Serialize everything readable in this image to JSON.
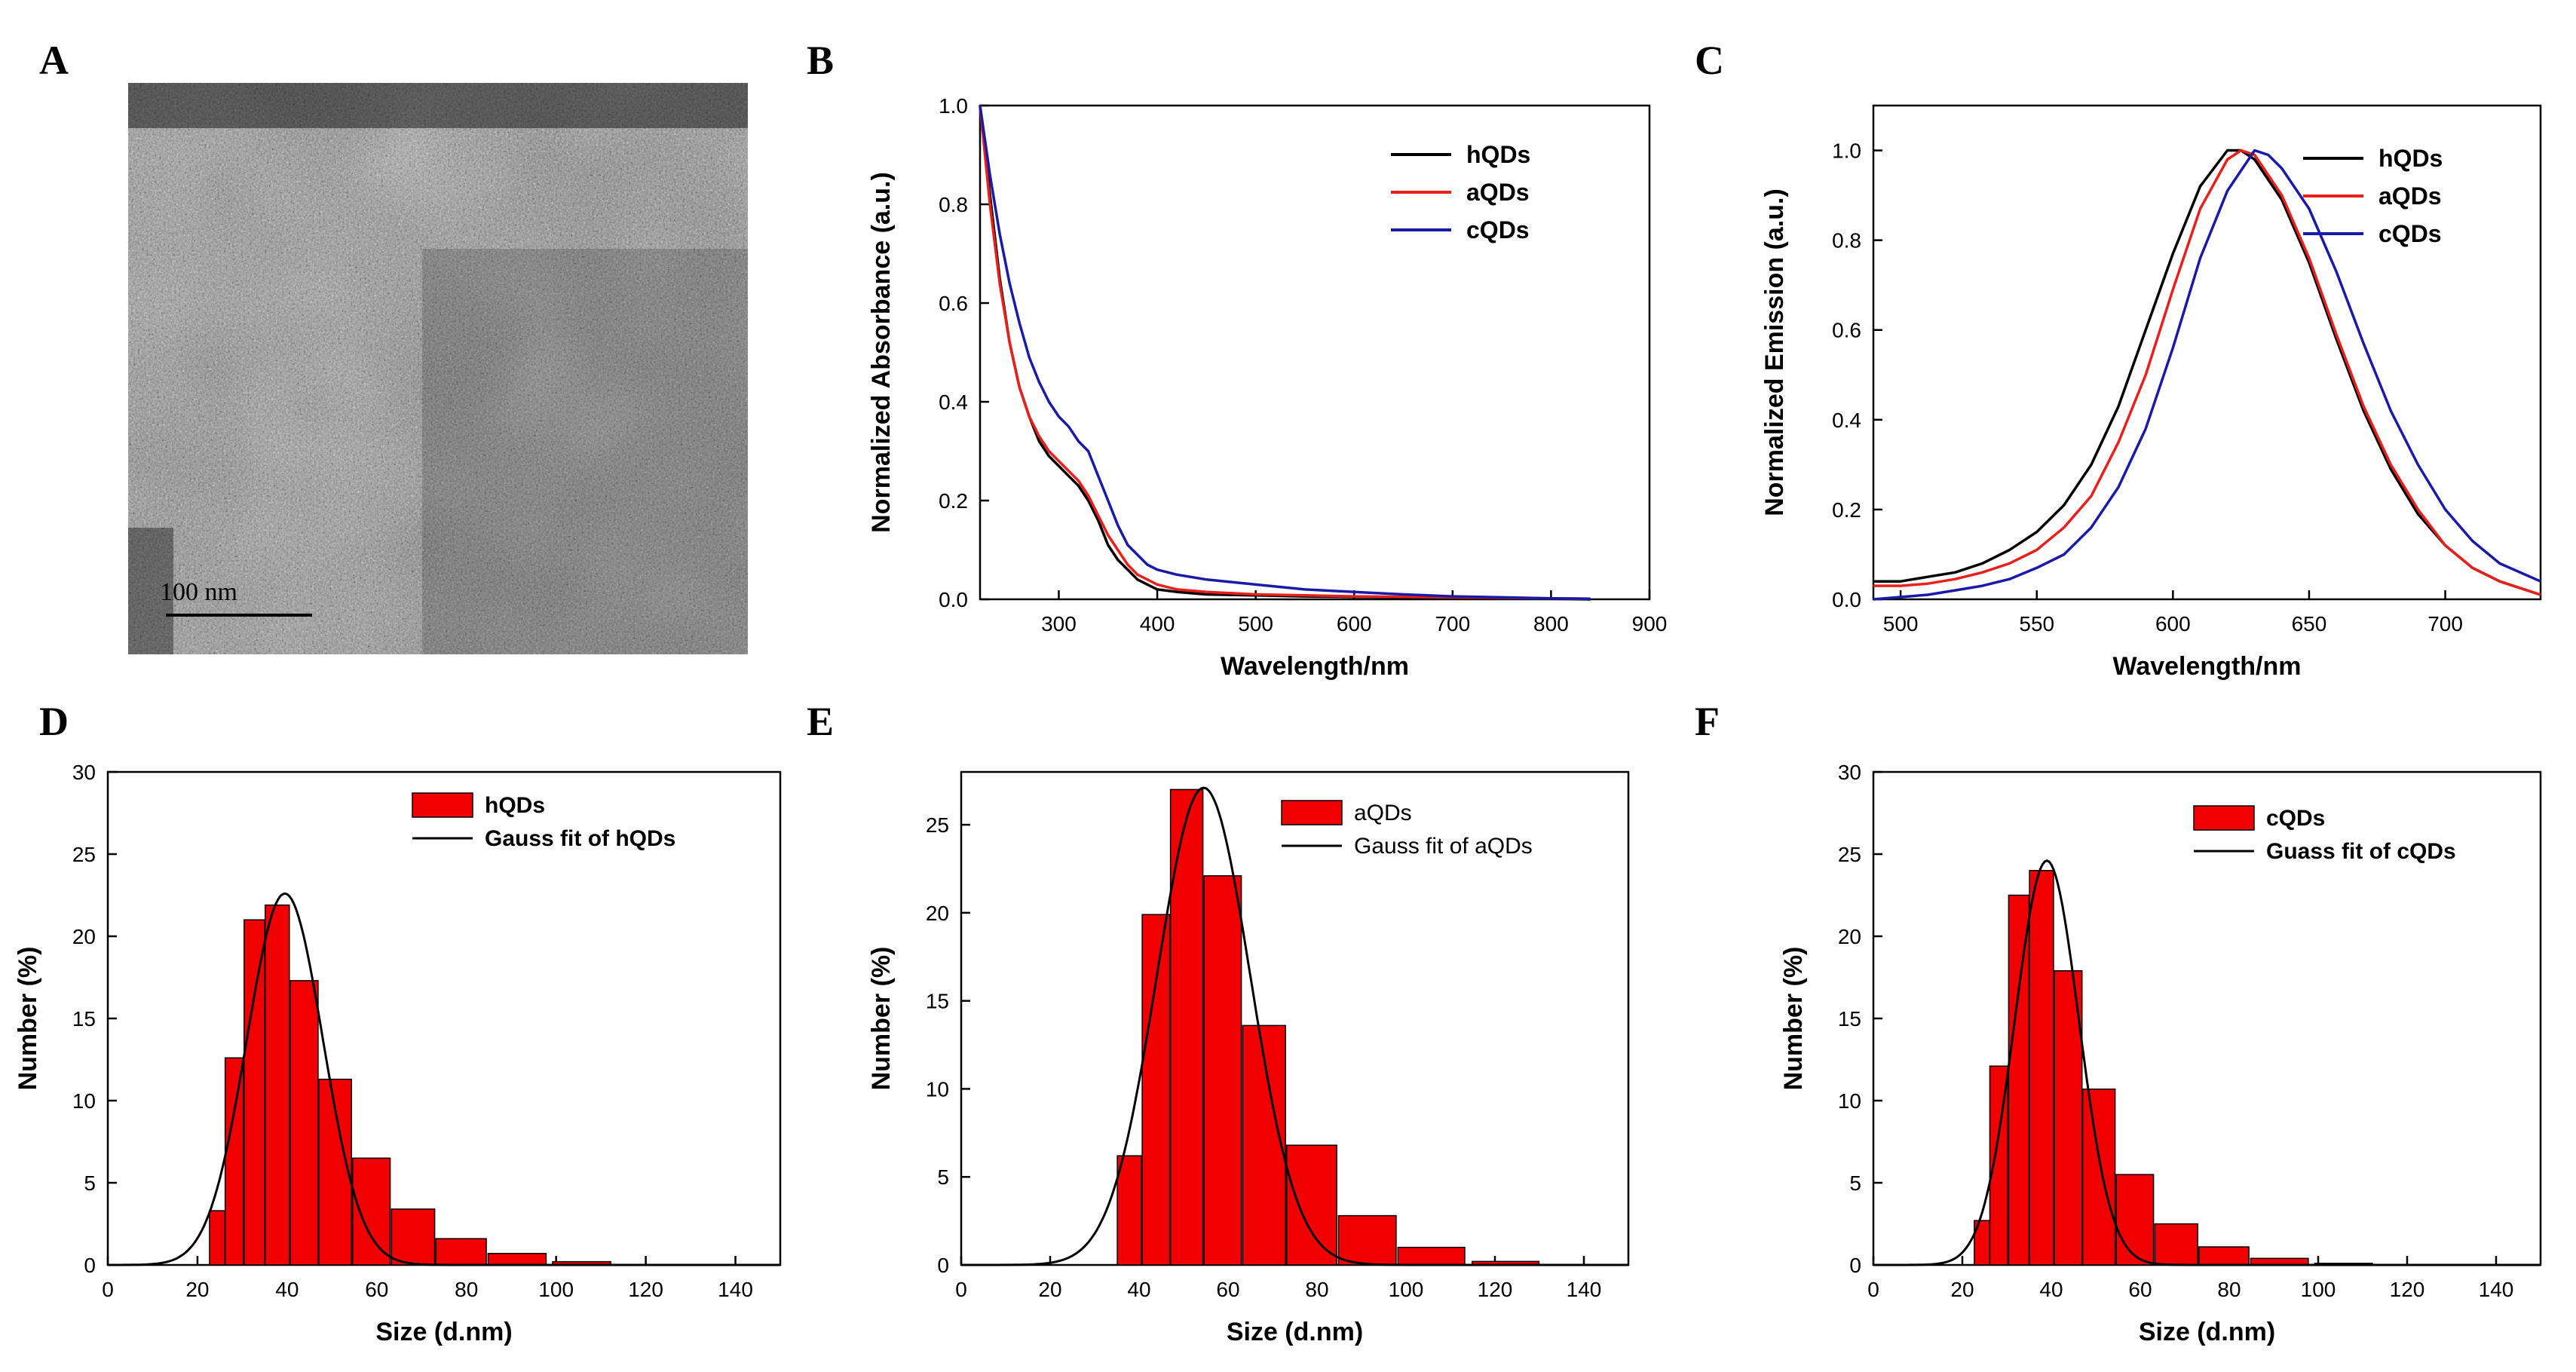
{
  "panel_letters": [
    "A",
    "B",
    "C",
    "D",
    "E",
    "F"
  ],
  "colors": {
    "black": "#000000",
    "red": "#e8201b",
    "blue": "#1a1aa8",
    "hist": "#f00000"
  },
  "tem": {
    "scalebar_label": "100 nm"
  },
  "chart_data": [
    {
      "id": "B",
      "type": "line",
      "title": "",
      "xlabel": "Wavelength/nm",
      "ylabel": "Normalized Absorbance (a.u.)",
      "xlim": [
        220,
        900
      ],
      "ylim": [
        0,
        1
      ],
      "xticks": [
        300,
        400,
        500,
        600,
        700,
        800,
        900
      ],
      "yticks": [
        0.0,
        0.2,
        0.4,
        0.6,
        0.8,
        1.0
      ],
      "xticklabels": [
        "300",
        "400",
        "500",
        "600",
        "700",
        "800",
        "900"
      ],
      "yticklabels": [
        "0.0",
        "0.2",
        "0.4",
        "0.6",
        "0.8",
        "1.0"
      ],
      "legend_position": "top-right",
      "series": [
        {
          "name": "hQDs",
          "color": "#000000",
          "x": [
            220,
            230,
            240,
            250,
            260,
            270,
            280,
            290,
            300,
            310,
            320,
            330,
            340,
            350,
            360,
            370,
            380,
            390,
            400,
            420,
            450,
            500,
            550,
            600,
            650,
            700,
            750,
            800,
            840
          ],
          "y": [
            1.0,
            0.82,
            0.65,
            0.52,
            0.43,
            0.37,
            0.32,
            0.29,
            0.27,
            0.25,
            0.23,
            0.2,
            0.16,
            0.11,
            0.08,
            0.06,
            0.04,
            0.03,
            0.02,
            0.015,
            0.01,
            0.008,
            0.006,
            0.005,
            0.004,
            0.003,
            0.002,
            0.001,
            0.0
          ]
        },
        {
          "name": "aQDs",
          "color": "#e8201b",
          "x": [
            220,
            230,
            240,
            250,
            260,
            270,
            280,
            290,
            300,
            310,
            320,
            330,
            340,
            350,
            360,
            370,
            380,
            390,
            400,
            420,
            450,
            500,
            550,
            600,
            650,
            700,
            750,
            800,
            840
          ],
          "y": [
            1.0,
            0.8,
            0.64,
            0.52,
            0.43,
            0.37,
            0.33,
            0.3,
            0.28,
            0.26,
            0.24,
            0.21,
            0.17,
            0.13,
            0.1,
            0.07,
            0.05,
            0.04,
            0.03,
            0.02,
            0.015,
            0.01,
            0.008,
            0.006,
            0.005,
            0.004,
            0.003,
            0.002,
            0.001
          ]
        },
        {
          "name": "cQDs",
          "color": "#1a1aa8",
          "x": [
            220,
            230,
            240,
            250,
            260,
            270,
            280,
            290,
            300,
            310,
            320,
            330,
            340,
            350,
            360,
            370,
            380,
            390,
            400,
            420,
            450,
            500,
            550,
            600,
            650,
            700,
            750,
            800,
            840
          ],
          "y": [
            1.0,
            0.86,
            0.74,
            0.64,
            0.56,
            0.49,
            0.44,
            0.4,
            0.37,
            0.35,
            0.32,
            0.3,
            0.25,
            0.2,
            0.15,
            0.11,
            0.09,
            0.07,
            0.06,
            0.05,
            0.04,
            0.03,
            0.02,
            0.015,
            0.01,
            0.006,
            0.004,
            0.002,
            0.001
          ]
        }
      ]
    },
    {
      "id": "C",
      "type": "line",
      "title": "",
      "xlabel": "Wavelength/nm",
      "ylabel": "Normalized Emission (a.u.)",
      "xlim": [
        490,
        735
      ],
      "ylim": [
        0,
        1.1
      ],
      "xticks": [
        500,
        550,
        600,
        650,
        700
      ],
      "yticks": [
        0.0,
        0.2,
        0.4,
        0.6,
        0.8,
        1.0
      ],
      "xticklabels": [
        "500",
        "550",
        "600",
        "650",
        "700"
      ],
      "yticklabels": [
        "0.0",
        "0.2",
        "0.4",
        "0.6",
        "0.8",
        "1.0"
      ],
      "legend_position": "top-right",
      "series": [
        {
          "name": "hQDs",
          "color": "#000000",
          "x": [
            490,
            500,
            510,
            520,
            530,
            540,
            550,
            560,
            570,
            580,
            590,
            600,
            610,
            620,
            625,
            630,
            640,
            650,
            660,
            670,
            680,
            690,
            700,
            710,
            720,
            735
          ],
          "y": [
            0.04,
            0.04,
            0.05,
            0.06,
            0.08,
            0.11,
            0.15,
            0.21,
            0.3,
            0.43,
            0.6,
            0.77,
            0.92,
            1.0,
            1.0,
            0.98,
            0.89,
            0.75,
            0.58,
            0.42,
            0.29,
            0.19,
            0.12,
            0.07,
            0.04,
            0.01
          ]
        },
        {
          "name": "aQDs",
          "color": "#e8201b",
          "x": [
            490,
            500,
            510,
            520,
            530,
            540,
            550,
            560,
            570,
            580,
            590,
            600,
            610,
            620,
            625,
            630,
            640,
            650,
            660,
            670,
            680,
            690,
            700,
            710,
            720,
            735
          ],
          "y": [
            0.03,
            0.03,
            0.035,
            0.045,
            0.06,
            0.08,
            0.11,
            0.16,
            0.23,
            0.35,
            0.5,
            0.69,
            0.87,
            0.98,
            1.0,
            0.99,
            0.9,
            0.76,
            0.59,
            0.43,
            0.3,
            0.2,
            0.12,
            0.07,
            0.04,
            0.01
          ]
        },
        {
          "name": "cQDs",
          "color": "#1a1aa8",
          "x": [
            490,
            500,
            510,
            520,
            530,
            540,
            550,
            560,
            570,
            580,
            590,
            600,
            610,
            620,
            630,
            635,
            640,
            650,
            660,
            670,
            680,
            690,
            700,
            710,
            720,
            735
          ],
          "y": [
            0.0,
            0.005,
            0.01,
            0.02,
            0.03,
            0.045,
            0.07,
            0.1,
            0.16,
            0.25,
            0.38,
            0.56,
            0.76,
            0.91,
            1.0,
            0.99,
            0.96,
            0.87,
            0.73,
            0.57,
            0.42,
            0.3,
            0.2,
            0.13,
            0.08,
            0.04
          ]
        }
      ]
    },
    {
      "id": "D",
      "type": "bar",
      "title": "",
      "xlabel": "Size (d.nm)",
      "ylabel": "Number (%)",
      "xlim": [
        0,
        150
      ],
      "ylim": [
        0,
        30
      ],
      "xticks": [
        0,
        20,
        40,
        60,
        80,
        100,
        120,
        140
      ],
      "yticks": [
        0,
        5,
        10,
        15,
        20,
        25,
        30
      ],
      "xticklabels": [
        "0",
        "20",
        "40",
        "60",
        "80",
        "100",
        "120",
        "140"
      ],
      "yticklabels": [
        "0",
        "5",
        "10",
        "15",
        "20",
        "25",
        "30"
      ],
      "legend_position": "top-right",
      "legend": [
        "hQDs",
        "Gauss fit of hQDs"
      ],
      "bars": {
        "x": [
          24.4,
          28.2,
          32.7,
          37.8,
          43.8,
          50.7,
          58.8,
          68.1,
          78.8,
          91.3,
          105.7
        ],
        "values": [
          3.3,
          12.6,
          21.0,
          21.9,
          17.3,
          11.3,
          6.5,
          3.4,
          1.6,
          0.7,
          0.2
        ]
      },
      "fit": {
        "mean": 39.5,
        "sigma": 8.5,
        "peak": 22.6
      }
    },
    {
      "id": "E",
      "type": "bar",
      "title": "",
      "xlabel": "Size (d.nm)",
      "ylabel": "Number (%)",
      "xlim": [
        0,
        150
      ],
      "ylim": [
        0,
        28
      ],
      "xticks": [
        0,
        20,
        40,
        60,
        80,
        100,
        120,
        140
      ],
      "yticks": [
        0,
        5,
        10,
        15,
        20,
        25
      ],
      "xticklabels": [
        "0",
        "20",
        "40",
        "60",
        "80",
        "100",
        "120",
        "140"
      ],
      "yticklabels": [
        "0",
        "5",
        "10",
        "15",
        "20",
        "25"
      ],
      "legend_position": "top-right",
      "legend": [
        "aQDs",
        "Gauss fit of aQDs"
      ],
      "bars": {
        "x": [
          37.8,
          43.8,
          50.7,
          58.8,
          68.1,
          78.8,
          91.3,
          105.7,
          122.4
        ],
        "values": [
          6.2,
          19.9,
          27.0,
          22.1,
          13.6,
          6.8,
          2.8,
          1.0,
          0.2
        ]
      },
      "fit": {
        "mean": 54.5,
        "sigma": 10.5,
        "peak": 27.1
      }
    },
    {
      "id": "F",
      "type": "bar",
      "title": "",
      "xlabel": "Size (d.nm)",
      "ylabel": "Number (%)",
      "xlim": [
        0,
        150
      ],
      "ylim": [
        0,
        30
      ],
      "xticks": [
        0,
        20,
        40,
        60,
        80,
        100,
        120,
        140
      ],
      "yticks": [
        0,
        5,
        10,
        15,
        20,
        25,
        30
      ],
      "xticklabels": [
        "0",
        "20",
        "40",
        "60",
        "80",
        "100",
        "120",
        "140"
      ],
      "yticklabels": [
        "0",
        "5",
        "10",
        "15",
        "20",
        "25",
        "30"
      ],
      "legend_position": "top-right",
      "legend": [
        "cQDs",
        "Guass fit of cQDs"
      ],
      "bars": {
        "x": [
          24.4,
          28.2,
          32.7,
          37.8,
          43.8,
          50.7,
          58.8,
          68.1,
          78.8,
          91.3,
          105.7
        ],
        "values": [
          2.7,
          12.1,
          22.5,
          24.0,
          17.9,
          10.7,
          5.5,
          2.5,
          1.1,
          0.4,
          0.1
        ]
      },
      "fit": {
        "mean": 39.0,
        "sigma": 7.2,
        "peak": 24.6
      }
    }
  ]
}
